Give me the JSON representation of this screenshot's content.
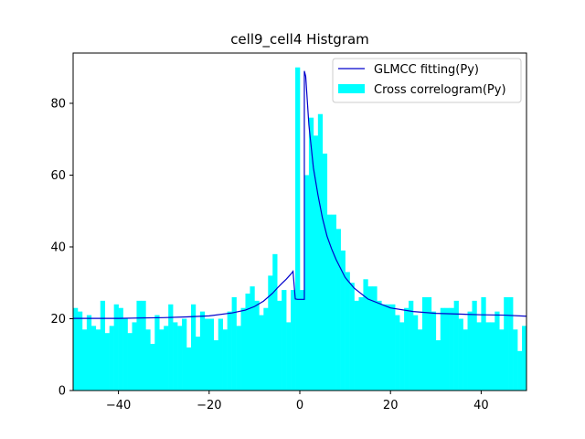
{
  "chart_data": {
    "type": "bar",
    "title": "cell9_cell4 Histgram",
    "xlabel": "",
    "ylabel": "",
    "xlim": [
      -50,
      50
    ],
    "ylim": [
      0,
      94
    ],
    "x_ticks": [
      -40,
      -20,
      0,
      20,
      40
    ],
    "y_ticks": [
      0,
      20,
      40,
      60,
      80
    ],
    "grid": false,
    "legend_position": "top-right",
    "colors": {
      "histogram": "#00ffff",
      "fit": "#0000cc"
    },
    "histogram": {
      "name": "Cross correlogram(Py)",
      "bin_start": -50,
      "bin_width": 1,
      "counts": [
        23,
        22,
        17,
        21,
        18,
        17,
        25,
        16,
        18,
        24,
        23,
        20,
        16,
        19,
        25,
        25,
        17,
        13,
        21,
        17,
        18,
        24,
        19,
        18,
        20,
        12,
        24,
        15,
        22,
        20,
        20,
        14,
        20,
        17,
        22,
        26,
        18,
        23,
        27,
        29,
        25,
        21,
        23,
        32,
        38,
        25,
        28,
        19,
        28,
        90,
        28,
        60,
        76,
        71,
        77,
        66,
        49,
        49,
        45,
        39,
        33,
        30,
        25,
        26,
        31,
        29,
        29,
        25,
        24,
        24,
        24,
        21,
        19,
        23,
        25,
        21,
        17,
        26,
        26,
        22,
        14,
        23,
        23,
        23,
        25,
        20,
        17,
        22,
        25,
        19,
        26,
        19,
        19,
        22,
        17,
        26,
        26,
        17,
        11,
        18
      ]
    },
    "fit": {
      "name": "GLMCC fitting(Py)",
      "x": [
        -50,
        -45,
        -40,
        -35,
        -30,
        -25,
        -20,
        -15,
        -12,
        -10,
        -8,
        -6,
        -5,
        -4,
        -3,
        -2,
        -1.5,
        -1,
        -0.5,
        1,
        1,
        1.3,
        2,
        3,
        4,
        5,
        6,
        7,
        8,
        10,
        12,
        15,
        20,
        25,
        30,
        35,
        40,
        45,
        50
      ],
      "y": [
        20.1,
        20.1,
        20.1,
        20.2,
        20.3,
        20.5,
        20.8,
        21.6,
        22.4,
        23.4,
        24.9,
        27.1,
        28.5,
        29.8,
        31.0,
        32.4,
        33.2,
        25.5,
        25.4,
        25.4,
        89.0,
        87.5,
        74.0,
        62.0,
        54.5,
        48.0,
        43.0,
        39.5,
        36.5,
        31.5,
        28.5,
        25.5,
        23.0,
        22.0,
        21.5,
        21.3,
        21.1,
        21.0,
        20.7
      ]
    },
    "legend": [
      "GLMCC fitting(Py)",
      "Cross correlogram(Py)"
    ]
  }
}
